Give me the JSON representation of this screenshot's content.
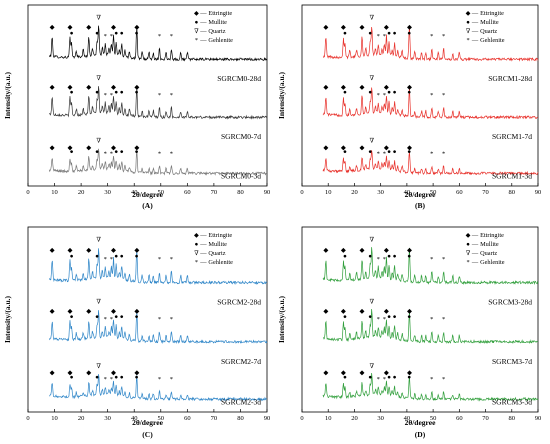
{
  "chart_data": [
    {
      "type": "line",
      "panel_label": "(A)",
      "xlabel": "2θ/degree",
      "ylabel": "Intensity/(a.u.)",
      "xlim": [
        0,
        90
      ],
      "xticks": [
        0,
        10,
        20,
        30,
        40,
        50,
        60,
        70,
        80,
        90
      ],
      "color": "#000000",
      "legend": {
        "placement": "top-right",
        "entries": [
          {
            "symbol": "◆",
            "label": "Ettringite"
          },
          {
            "symbol": "●",
            "label": "Mullite"
          },
          {
            "symbol": "∇",
            "label": "Quartz"
          },
          {
            "symbol": "*",
            "label": "Gehlenite"
          }
        ]
      },
      "series": [
        {
          "name": "SGRCM0-28d",
          "color": "#000000"
        },
        {
          "name": "SGRCM0-7d",
          "color": "#333333"
        },
        {
          "name": "SGRCM0-3d",
          "color": "#777777"
        }
      ]
    },
    {
      "type": "line",
      "panel_label": "(B)",
      "xlabel": "2θ/degree",
      "ylabel": "Intensity/(a.u.)",
      "xlim": [
        0,
        90
      ],
      "xticks": [
        0,
        10,
        20,
        30,
        40,
        50,
        60,
        70,
        80,
        90
      ],
      "color": "#e8302a",
      "legend": {
        "placement": "top-right",
        "entries": [
          {
            "symbol": "◆",
            "label": "Ettringite"
          },
          {
            "symbol": "●",
            "label": "Mullite"
          },
          {
            "symbol": "∇",
            "label": "Quartz"
          },
          {
            "symbol": "*",
            "label": "Gehlenite"
          }
        ]
      },
      "series": [
        {
          "name": "SGRCM1-28d",
          "color": "#e8302a"
        },
        {
          "name": "SGRCM1-7d",
          "color": "#e8302a"
        },
        {
          "name": "SGRCM1-3d",
          "color": "#e8302a"
        }
      ]
    },
    {
      "type": "line",
      "panel_label": "(C)",
      "xlabel": "2θ/degree",
      "ylabel": "Intensity/(a.u.)",
      "xlim": [
        0,
        90
      ],
      "xticks": [
        0,
        10,
        20,
        30,
        40,
        50,
        60,
        70,
        80,
        90
      ],
      "color": "#2f86c8",
      "legend": {
        "placement": "top-right",
        "entries": [
          {
            "symbol": "◆",
            "label": "Ettringite"
          },
          {
            "symbol": "●",
            "label": "Mullite"
          },
          {
            "symbol": "∇",
            "label": "Quartz"
          },
          {
            "symbol": "*",
            "label": "Gehlenite"
          }
        ]
      },
      "series": [
        {
          "name": "SGRCM2-28d",
          "color": "#2f86c8"
        },
        {
          "name": "SGRCM2-7d",
          "color": "#2f86c8"
        },
        {
          "name": "SGRCM2-3d",
          "color": "#2f86c8"
        }
      ]
    },
    {
      "type": "line",
      "panel_label": "(D)",
      "xlabel": "2θ/degree",
      "ylabel": "Intensity/(a.u.)",
      "xlim": [
        0,
        90
      ],
      "xticks": [
        0,
        10,
        20,
        30,
        40,
        50,
        60,
        70,
        80,
        90
      ],
      "color": "#2f9e3a",
      "legend": {
        "placement": "top-right",
        "entries": [
          {
            "symbol": "◆",
            "label": "Ettringite"
          },
          {
            "symbol": "●",
            "label": "Mullite"
          },
          {
            "symbol": "∇",
            "label": "Quartz"
          },
          {
            "symbol": "*",
            "label": "Gehlenite"
          }
        ]
      },
      "series": [
        {
          "name": "SGRCM3-28d",
          "color": "#2f9e3a"
        },
        {
          "name": "SGRCM3-7d",
          "color": "#2f9e3a"
        },
        {
          "name": "SGRCM3-3d",
          "color": "#2f9e3a"
        }
      ]
    }
  ],
  "peaks": {
    "ettringite_2theta": [
      9.1,
      15.8,
      22.9,
      32.2,
      41.0
    ],
    "mullite_2theta": [
      16.4,
      26.0,
      33.2,
      35.3,
      40.9
    ],
    "quartz_2theta": [
      26.6
    ],
    "gehlenite_2theta": [
      29.1,
      31.4,
      49.5,
      54.0
    ]
  }
}
